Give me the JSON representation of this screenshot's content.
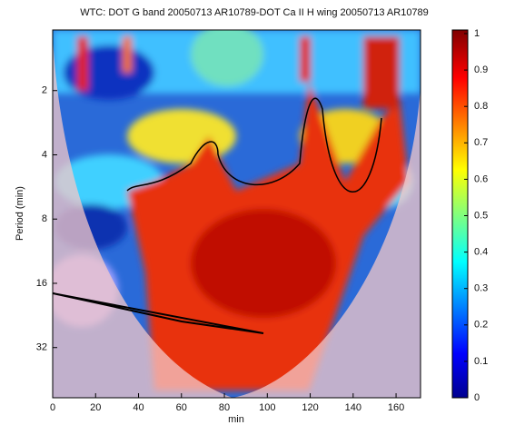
{
  "chart_data": {
    "type": "heatmap",
    "title": "WTC: DOT G band 20050713 AR10789-DOT Ca II H wing 20050713 AR10789",
    "xlabel": "min",
    "ylabel": "Period (min)",
    "xlim": [
      0,
      171.4
    ],
    "xticks": [
      0,
      20,
      40,
      60,
      80,
      100,
      120,
      140,
      160
    ],
    "ylim": [
      1.04,
      55
    ],
    "yscale": "log",
    "yreverse": true,
    "yticks": [
      2,
      4,
      8,
      16,
      32
    ],
    "clim": [
      0,
      1.01
    ],
    "cticks": [
      0,
      0.1,
      0.2,
      0.3,
      0.4,
      0.5,
      0.6,
      0.7,
      0.8,
      0.9,
      1
    ]
  }
}
